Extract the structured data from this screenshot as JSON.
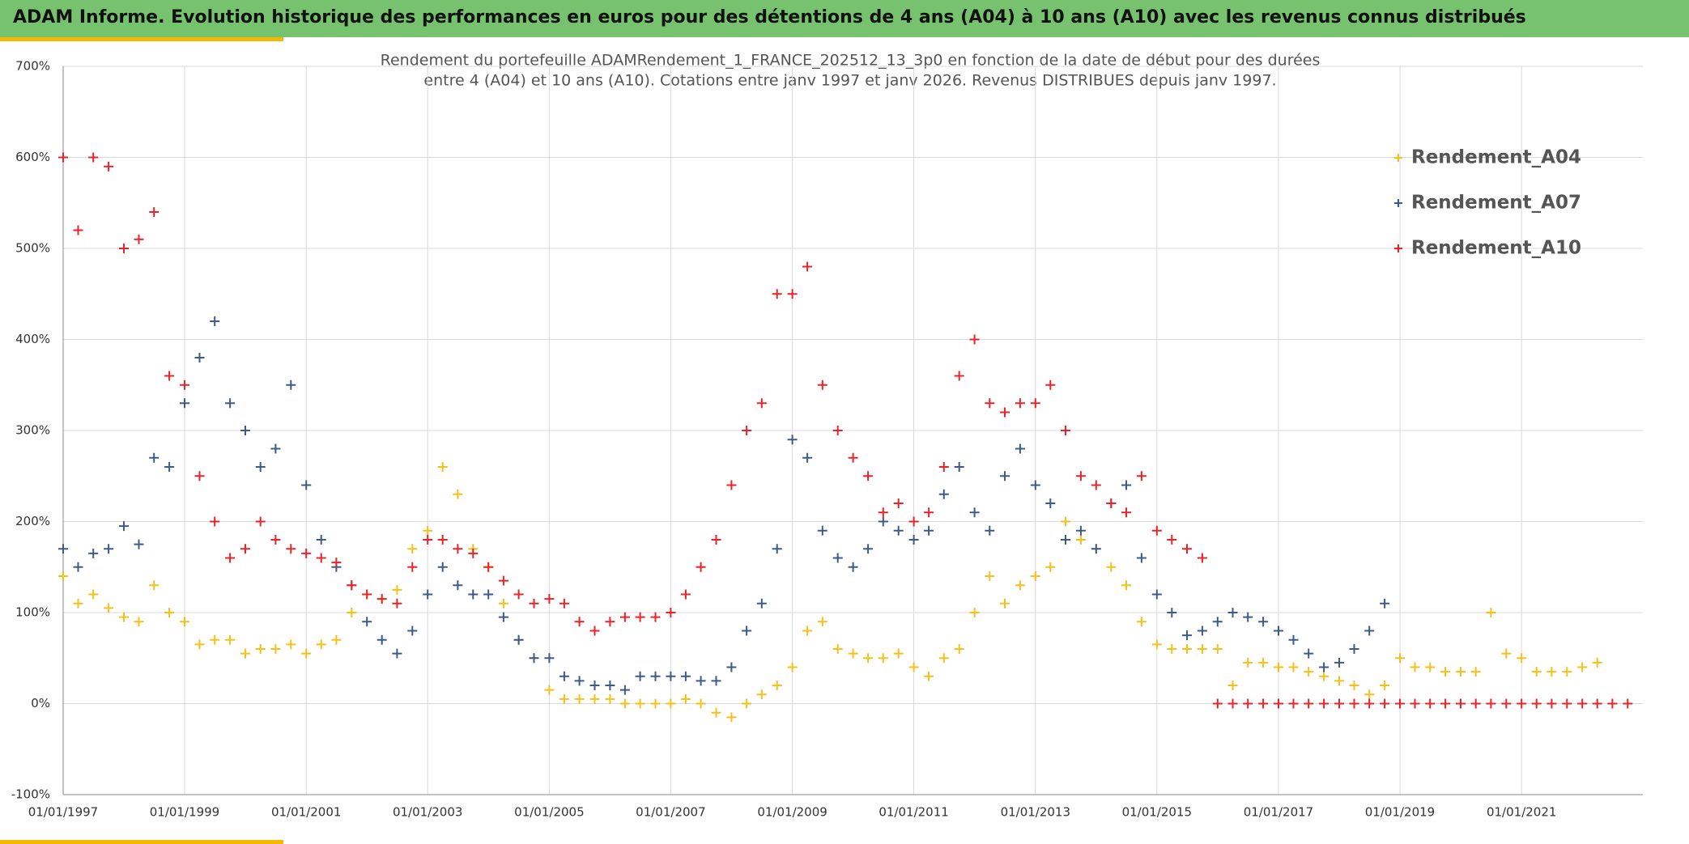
{
  "chart_data": {
    "type": "scatter",
    "title": "ADAM Informe. Evolution historique des performances en euros pour des détentions de 4 ans (A04) à 10 ans (A10) avec les revenus connus distribués",
    "subtitle": [
      "Rendement du portefeuille ADAMRendement_1_FRANCE_202512_13_3p0  en fonction de la date de début pour des durées",
      "entre 4 (A04) et 10 ans (A10). Cotations entre janv 1997 et janv 2026. Revenus DISTRIBUES depuis janv 1997."
    ],
    "xlim": [
      "1997-01-01",
      "2022-12-31"
    ],
    "xticks": [
      {
        "value": "1997-01-01",
        "label": "01/01/1997"
      },
      {
        "value": "1999-01-01",
        "label": "01/01/1999"
      },
      {
        "value": "2001-01-01",
        "label": "01/01/2001"
      },
      {
        "value": "2003-01-01",
        "label": "01/01/2003"
      },
      {
        "value": "2005-01-01",
        "label": "01/01/2005"
      },
      {
        "value": "2007-01-01",
        "label": "01/01/2007"
      },
      {
        "value": "2009-01-01",
        "label": "01/01/2009"
      },
      {
        "value": "2011-01-01",
        "label": "01/01/2011"
      },
      {
        "value": "2013-01-01",
        "label": "01/01/2013"
      },
      {
        "value": "2015-01-01",
        "label": "01/01/2015"
      },
      {
        "value": "2017-01-01",
        "label": "01/01/2017"
      },
      {
        "value": "2019-01-01",
        "label": "01/01/2019"
      },
      {
        "value": "2021-01-01",
        "label": "01/01/2021"
      }
    ],
    "ylim": [
      -100,
      700
    ],
    "yticks": [
      {
        "value": -100,
        "label": "-100%"
      },
      {
        "value": 0,
        "label": "0%"
      },
      {
        "value": 100,
        "label": "100%"
      },
      {
        "value": 200,
        "label": "200%"
      },
      {
        "value": 300,
        "label": "300%"
      },
      {
        "value": 400,
        "label": "400%"
      },
      {
        "value": 500,
        "label": "500%"
      },
      {
        "value": 600,
        "label": "600%"
      },
      {
        "value": 700,
        "label": "700%"
      }
    ],
    "grid": true,
    "legend": "right",
    "x": [
      "1997-01-01",
      "1997-04-01",
      "1997-07-01",
      "1997-10-01",
      "1998-01-01",
      "1998-04-01",
      "1998-07-01",
      "1998-10-01",
      "1999-01-01",
      "1999-04-01",
      "1999-07-01",
      "1999-10-01",
      "2000-01-01",
      "2000-04-01",
      "2000-07-01",
      "2000-10-01",
      "2001-01-01",
      "2001-04-01",
      "2001-07-01",
      "2001-10-01",
      "2002-01-01",
      "2002-04-01",
      "2002-07-01",
      "2002-10-01",
      "2003-01-01",
      "2003-04-01",
      "2003-07-01",
      "2003-10-01",
      "2004-01-01",
      "2004-04-01",
      "2004-07-01",
      "2004-10-01",
      "2005-01-01",
      "2005-04-01",
      "2005-07-01",
      "2005-10-01",
      "2006-01-01",
      "2006-04-01",
      "2006-07-01",
      "2006-10-01",
      "2007-01-01",
      "2007-04-01",
      "2007-07-01",
      "2007-10-01",
      "2008-01-01",
      "2008-04-01",
      "2008-07-01",
      "2008-10-01",
      "2009-01-01",
      "2009-04-01",
      "2009-07-01",
      "2009-10-01",
      "2010-01-01",
      "2010-04-01",
      "2010-07-01",
      "2010-10-01",
      "2011-01-01",
      "2011-04-01",
      "2011-07-01",
      "2011-10-01",
      "2012-01-01",
      "2012-04-01",
      "2012-07-01",
      "2012-10-01",
      "2013-01-01",
      "2013-04-01",
      "2013-07-01",
      "2013-10-01",
      "2014-01-01",
      "2014-04-01",
      "2014-07-01",
      "2014-10-01",
      "2015-01-01",
      "2015-04-01",
      "2015-07-01",
      "2015-10-01",
      "2016-01-01",
      "2016-04-01",
      "2016-07-01",
      "2016-10-01",
      "2017-01-01",
      "2017-04-01",
      "2017-07-01",
      "2017-10-01",
      "2018-01-01",
      "2018-04-01",
      "2018-07-01",
      "2018-10-01",
      "2019-01-01",
      "2019-04-01",
      "2019-07-01",
      "2019-10-01",
      "2020-01-01",
      "2020-04-01",
      "2020-07-01",
      "2020-10-01",
      "2021-01-01",
      "2021-04-01",
      "2021-07-01",
      "2021-10-01",
      "2022-01-01",
      "2022-04-01",
      "2022-07-01",
      "2022-10-01"
    ],
    "series": [
      {
        "name": "Rendement_A04",
        "color": "#f5c01c",
        "values": [
          140,
          110,
          120,
          105,
          95,
          90,
          130,
          100,
          90,
          65,
          70,
          70,
          55,
          60,
          60,
          65,
          55,
          65,
          70,
          100,
          120,
          115,
          125,
          170,
          190,
          260,
          230,
          170,
          150,
          110,
          70,
          50,
          15,
          5,
          5,
          5,
          5,
          0,
          0,
          0,
          0,
          5,
          0,
          -10,
          -15,
          0,
          10,
          20,
          40,
          80,
          90,
          60,
          55,
          50,
          50,
          55,
          40,
          30,
          50,
          60,
          100,
          140,
          110,
          130,
          140,
          150,
          200,
          180,
          170,
          150,
          130,
          90,
          65,
          60,
          60,
          60,
          60,
          20,
          45,
          45,
          40,
          40,
          35,
          30,
          25,
          20,
          10,
          20,
          50,
          40,
          40,
          35,
          35,
          35,
          100,
          55,
          50,
          35,
          35,
          35,
          40,
          45,
          null,
          null
        ]
      },
      {
        "name": "Rendement_A07",
        "color": "#3d5a8a",
        "values": [
          170,
          150,
          165,
          170,
          195,
          175,
          270,
          260,
          330,
          380,
          420,
          330,
          300,
          260,
          280,
          350,
          240,
          180,
          150,
          130,
          90,
          70,
          55,
          80,
          120,
          150,
          130,
          120,
          120,
          95,
          70,
          50,
          50,
          30,
          25,
          20,
          20,
          15,
          30,
          30,
          30,
          30,
          25,
          25,
          40,
          80,
          110,
          170,
          290,
          270,
          190,
          160,
          150,
          170,
          200,
          190,
          180,
          190,
          230,
          260,
          210,
          190,
          250,
          280,
          240,
          220,
          180,
          190,
          170,
          220,
          240,
          160,
          120,
          100,
          75,
          80,
          90,
          100,
          95,
          90,
          80,
          70,
          55,
          40,
          45,
          60,
          80,
          110,
          null,
          null,
          null,
          null,
          null,
          null,
          null,
          null,
          null,
          null,
          null,
          null,
          null,
          null,
          null,
          null
        ]
      },
      {
        "name": "Rendement_A10",
        "color": "#e8242b",
        "values": [
          600,
          520,
          600,
          590,
          500,
          510,
          540,
          360,
          350,
          250,
          200,
          160,
          170,
          200,
          180,
          170,
          165,
          160,
          155,
          130,
          120,
          115,
          110,
          150,
          180,
          180,
          170,
          165,
          150,
          135,
          120,
          110,
          115,
          110,
          90,
          80,
          90,
          95,
          95,
          95,
          100,
          120,
          150,
          180,
          240,
          300,
          330,
          450,
          450,
          480,
          350,
          300,
          270,
          250,
          210,
          220,
          200,
          210,
          260,
          360,
          400,
          330,
          320,
          330,
          330,
          350,
          300,
          250,
          240,
          220,
          210,
          250,
          190,
          180,
          170,
          160,
          0,
          0,
          0,
          0,
          0,
          0,
          0,
          0,
          0,
          0,
          0,
          0,
          0,
          0,
          0,
          0,
          0,
          0,
          0,
          0,
          0,
          0,
          0,
          0,
          0,
          0,
          0,
          0
        ]
      }
    ]
  }
}
